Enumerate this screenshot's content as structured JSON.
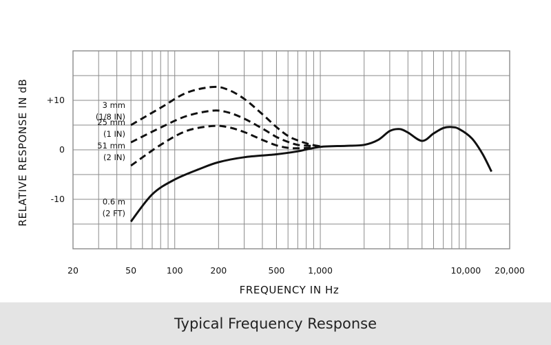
{
  "caption": "Typical Frequency Response",
  "chart_data": {
    "type": "line",
    "xlabel": "FREQUENCY IN Hz",
    "ylabel": "RELATIVE RESPONSE IN dB",
    "x_scale": "log",
    "xlim": [
      20,
      20000
    ],
    "ylim": [
      -20,
      20
    ],
    "grid": true,
    "x_ticks": [
      {
        "value": 20,
        "label": "20"
      },
      {
        "value": 50,
        "label": "50"
      },
      {
        "value": 100,
        "label": "100"
      },
      {
        "value": 200,
        "label": "200"
      },
      {
        "value": 500,
        "label": "500"
      },
      {
        "value": 1000,
        "label": "1,000"
      },
      {
        "value": 10000,
        "label": "10,000"
      },
      {
        "value": 20000,
        "label": "20,000"
      }
    ],
    "y_ticks": [
      {
        "value": 10,
        "label": "+10"
      },
      {
        "value": 0,
        "label": "0"
      },
      {
        "value": -10,
        "label": "-10"
      }
    ],
    "series": [
      {
        "name": "3 mm (1/8 IN)",
        "label_lines": [
          "3 mm",
          "(1/8 IN)"
        ],
        "style": "dashed",
        "points": [
          [
            50,
            5
          ],
          [
            80,
            8.5
          ],
          [
            120,
            11.5
          ],
          [
            180,
            12.7
          ],
          [
            230,
            12.2
          ],
          [
            300,
            10.3
          ],
          [
            400,
            7.2
          ],
          [
            500,
            4.6
          ],
          [
            600,
            2.8
          ],
          [
            700,
            1.9
          ],
          [
            850,
            1.1
          ],
          [
            1000,
            0.7
          ]
        ]
      },
      {
        "name": "25 mm (1 IN)",
        "label_lines": [
          "25 mm",
          "(1 IN)"
        ],
        "style": "dashed",
        "points": [
          [
            50,
            1.5
          ],
          [
            80,
            4.5
          ],
          [
            120,
            6.8
          ],
          [
            180,
            7.9
          ],
          [
            230,
            7.6
          ],
          [
            300,
            6.3
          ],
          [
            400,
            4.3
          ],
          [
            500,
            2.6
          ],
          [
            600,
            1.6
          ],
          [
            700,
            1.0
          ],
          [
            850,
            0.8
          ],
          [
            1000,
            0.7
          ]
        ]
      },
      {
        "name": "51 mm (2 IN)",
        "label_lines": [
          "51 mm",
          "(2 IN)"
        ],
        "style": "dashed",
        "points": [
          [
            50,
            -3.2
          ],
          [
            80,
            1.0
          ],
          [
            120,
            3.8
          ],
          [
            180,
            4.8
          ],
          [
            230,
            4.6
          ],
          [
            300,
            3.6
          ],
          [
            400,
            2.0
          ],
          [
            500,
            0.9
          ],
          [
            600,
            0.4
          ],
          [
            700,
            0.3
          ],
          [
            850,
            0.4
          ],
          [
            1000,
            0.7
          ]
        ]
      },
      {
        "name": "0.6 m (2 FT)",
        "label_lines": [
          "0.6 m",
          "(2 FT)"
        ],
        "style": "solid",
        "points": [
          [
            50,
            -14.5
          ],
          [
            70,
            -9
          ],
          [
            100,
            -6
          ],
          [
            150,
            -3.8
          ],
          [
            200,
            -2.5
          ],
          [
            300,
            -1.5
          ],
          [
            500,
            -0.9
          ],
          [
            700,
            -0.3
          ],
          [
            1000,
            0.6
          ],
          [
            1500,
            0.8
          ],
          [
            2000,
            1.0
          ],
          [
            2500,
            2
          ],
          [
            3000,
            3.8
          ],
          [
            3500,
            4.2
          ],
          [
            4000,
            3.5
          ],
          [
            5000,
            1.8
          ],
          [
            6000,
            3.3
          ],
          [
            7000,
            4.4
          ],
          [
            8000,
            4.6
          ],
          [
            9000,
            4.2
          ],
          [
            11000,
            2.3
          ],
          [
            13000,
            -0.8
          ],
          [
            15000,
            -4.4
          ]
        ]
      }
    ]
  }
}
